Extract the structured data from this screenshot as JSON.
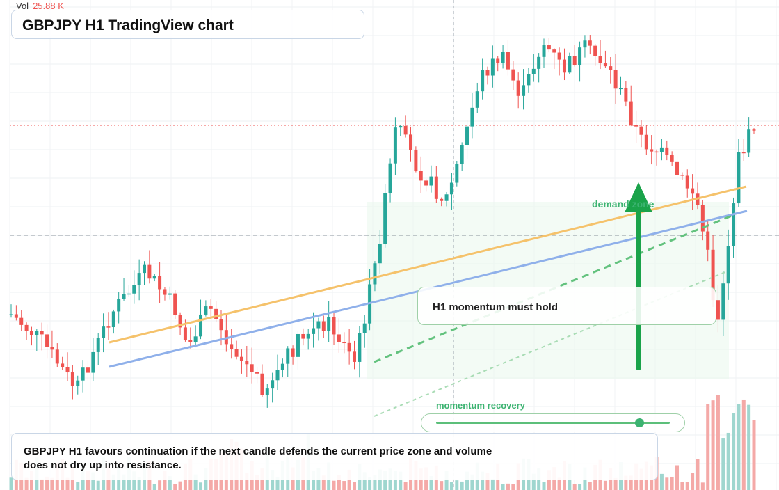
{
  "header": {
    "vol_label": "Vol",
    "vol_value": "25.88 K",
    "title": "GBPJPY H1 TradingView chart"
  },
  "annotations": {
    "demand_label": "demand zone",
    "momentum_callout": "H1 momentum must hold",
    "recovery_label": "momentum recovery",
    "recovery_level": 0.87,
    "summary": "GBPJPY H1 favours continuation if the next candle defends the current price zone and volume does not dry up into resistance."
  },
  "colors": {
    "up": "#26a69a",
    "down": "#ef5350",
    "trend_orange": "#f5c26b",
    "trend_blue": "#8fb0ea",
    "green": "#1aa34a",
    "zone": "#eaf7ec"
  },
  "chart_data": {
    "type": "candlestick",
    "symbol": "GBPJPY",
    "timeframe": "H1",
    "price_range": [
      0,
      100
    ],
    "candle_count": 146,
    "last_volume": "25.88 K"
  }
}
